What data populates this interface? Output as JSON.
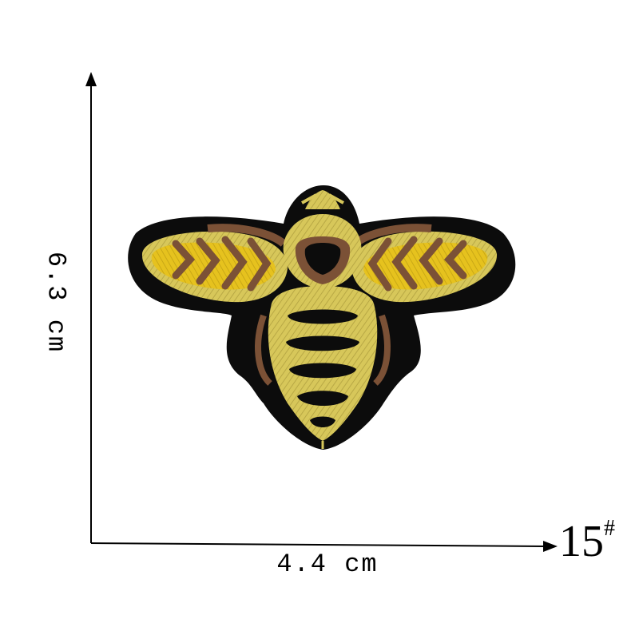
{
  "dimensions": {
    "width": "4.4 cm",
    "height": "6.3 cm"
  },
  "style_number": {
    "number": "15",
    "mark": "#"
  },
  "colors": {
    "patch_border": "#0c0c0c",
    "gold_thread": "#d7c75a",
    "yellow_thread": "#e6c21e",
    "brown_thread": "#7b5136",
    "axis": "#000000"
  },
  "subject": "bee-embroidered-patch"
}
